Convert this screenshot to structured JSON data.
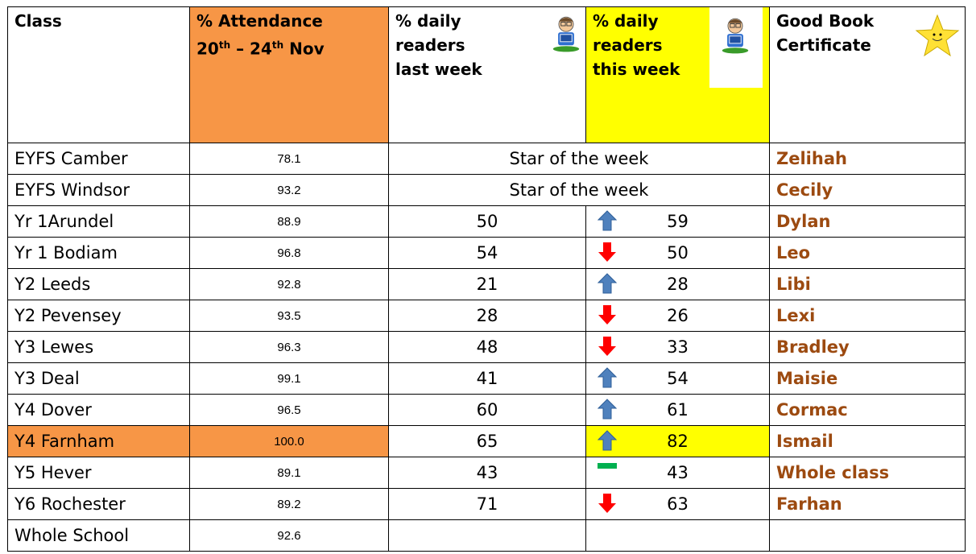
{
  "header": {
    "class": "Class",
    "attendance": {
      "line1": "% Attendance",
      "day1": "20",
      "sup1": "th",
      "mid": "– 24",
      "sup2": "th",
      "end": "Nov"
    },
    "last_week": "% daily readers last week",
    "this_week": "% daily readers this week",
    "certificate": "Good Book Certificate"
  },
  "table": {
    "rows": [
      {
        "class": "EYFS Camber",
        "attendance": "78.1",
        "star": "Star of the week",
        "certificate": "Zelihah"
      },
      {
        "class": "EYFS Windsor",
        "attendance": "93.2",
        "star": "Star of the week",
        "certificate": "Cecily"
      },
      {
        "class": "Yr 1Arundel",
        "attendance": "88.9",
        "last_week": "50",
        "this_week": "59",
        "certificate": "Dylan"
      },
      {
        "class": "Yr 1 Bodiam",
        "attendance": "96.8",
        "last_week": "54",
        "this_week": "50",
        "certificate": "Leo"
      },
      {
        "class": "Y2 Leeds",
        "attendance": "92.8",
        "last_week": "21",
        "this_week": "28",
        "certificate": "Libi"
      },
      {
        "class": "Y2 Pevensey",
        "attendance": "93.5",
        "last_week": "28",
        "this_week": "26",
        "certificate": "Lexi"
      },
      {
        "class": "Y3 Lewes",
        "attendance": "96.3",
        "last_week": "48",
        "this_week": "33",
        "certificate": "Bradley"
      },
      {
        "class": "Y3 Deal",
        "attendance": "99.1",
        "last_week": "41",
        "this_week": "54",
        "certificate": "Maisie"
      },
      {
        "class": "Y4 Dover",
        "attendance": "96.5",
        "last_week": "60",
        "this_week": "61",
        "certificate": "Cormac"
      },
      {
        "class": "Y4 Farnham",
        "attendance": "100.0",
        "last_week": "65",
        "this_week": "82",
        "certificate": "Ismail"
      },
      {
        "class": "Y5 Hever",
        "attendance": "89.1",
        "last_week": "43",
        "this_week": "43",
        "certificate": "Whole class"
      },
      {
        "class": "Y6 Rochester",
        "attendance": "89.2",
        "last_week": "71",
        "this_week": "63",
        "certificate": "Farhan"
      },
      {
        "class": "Whole School",
        "attendance": "92.6"
      }
    ]
  }
}
